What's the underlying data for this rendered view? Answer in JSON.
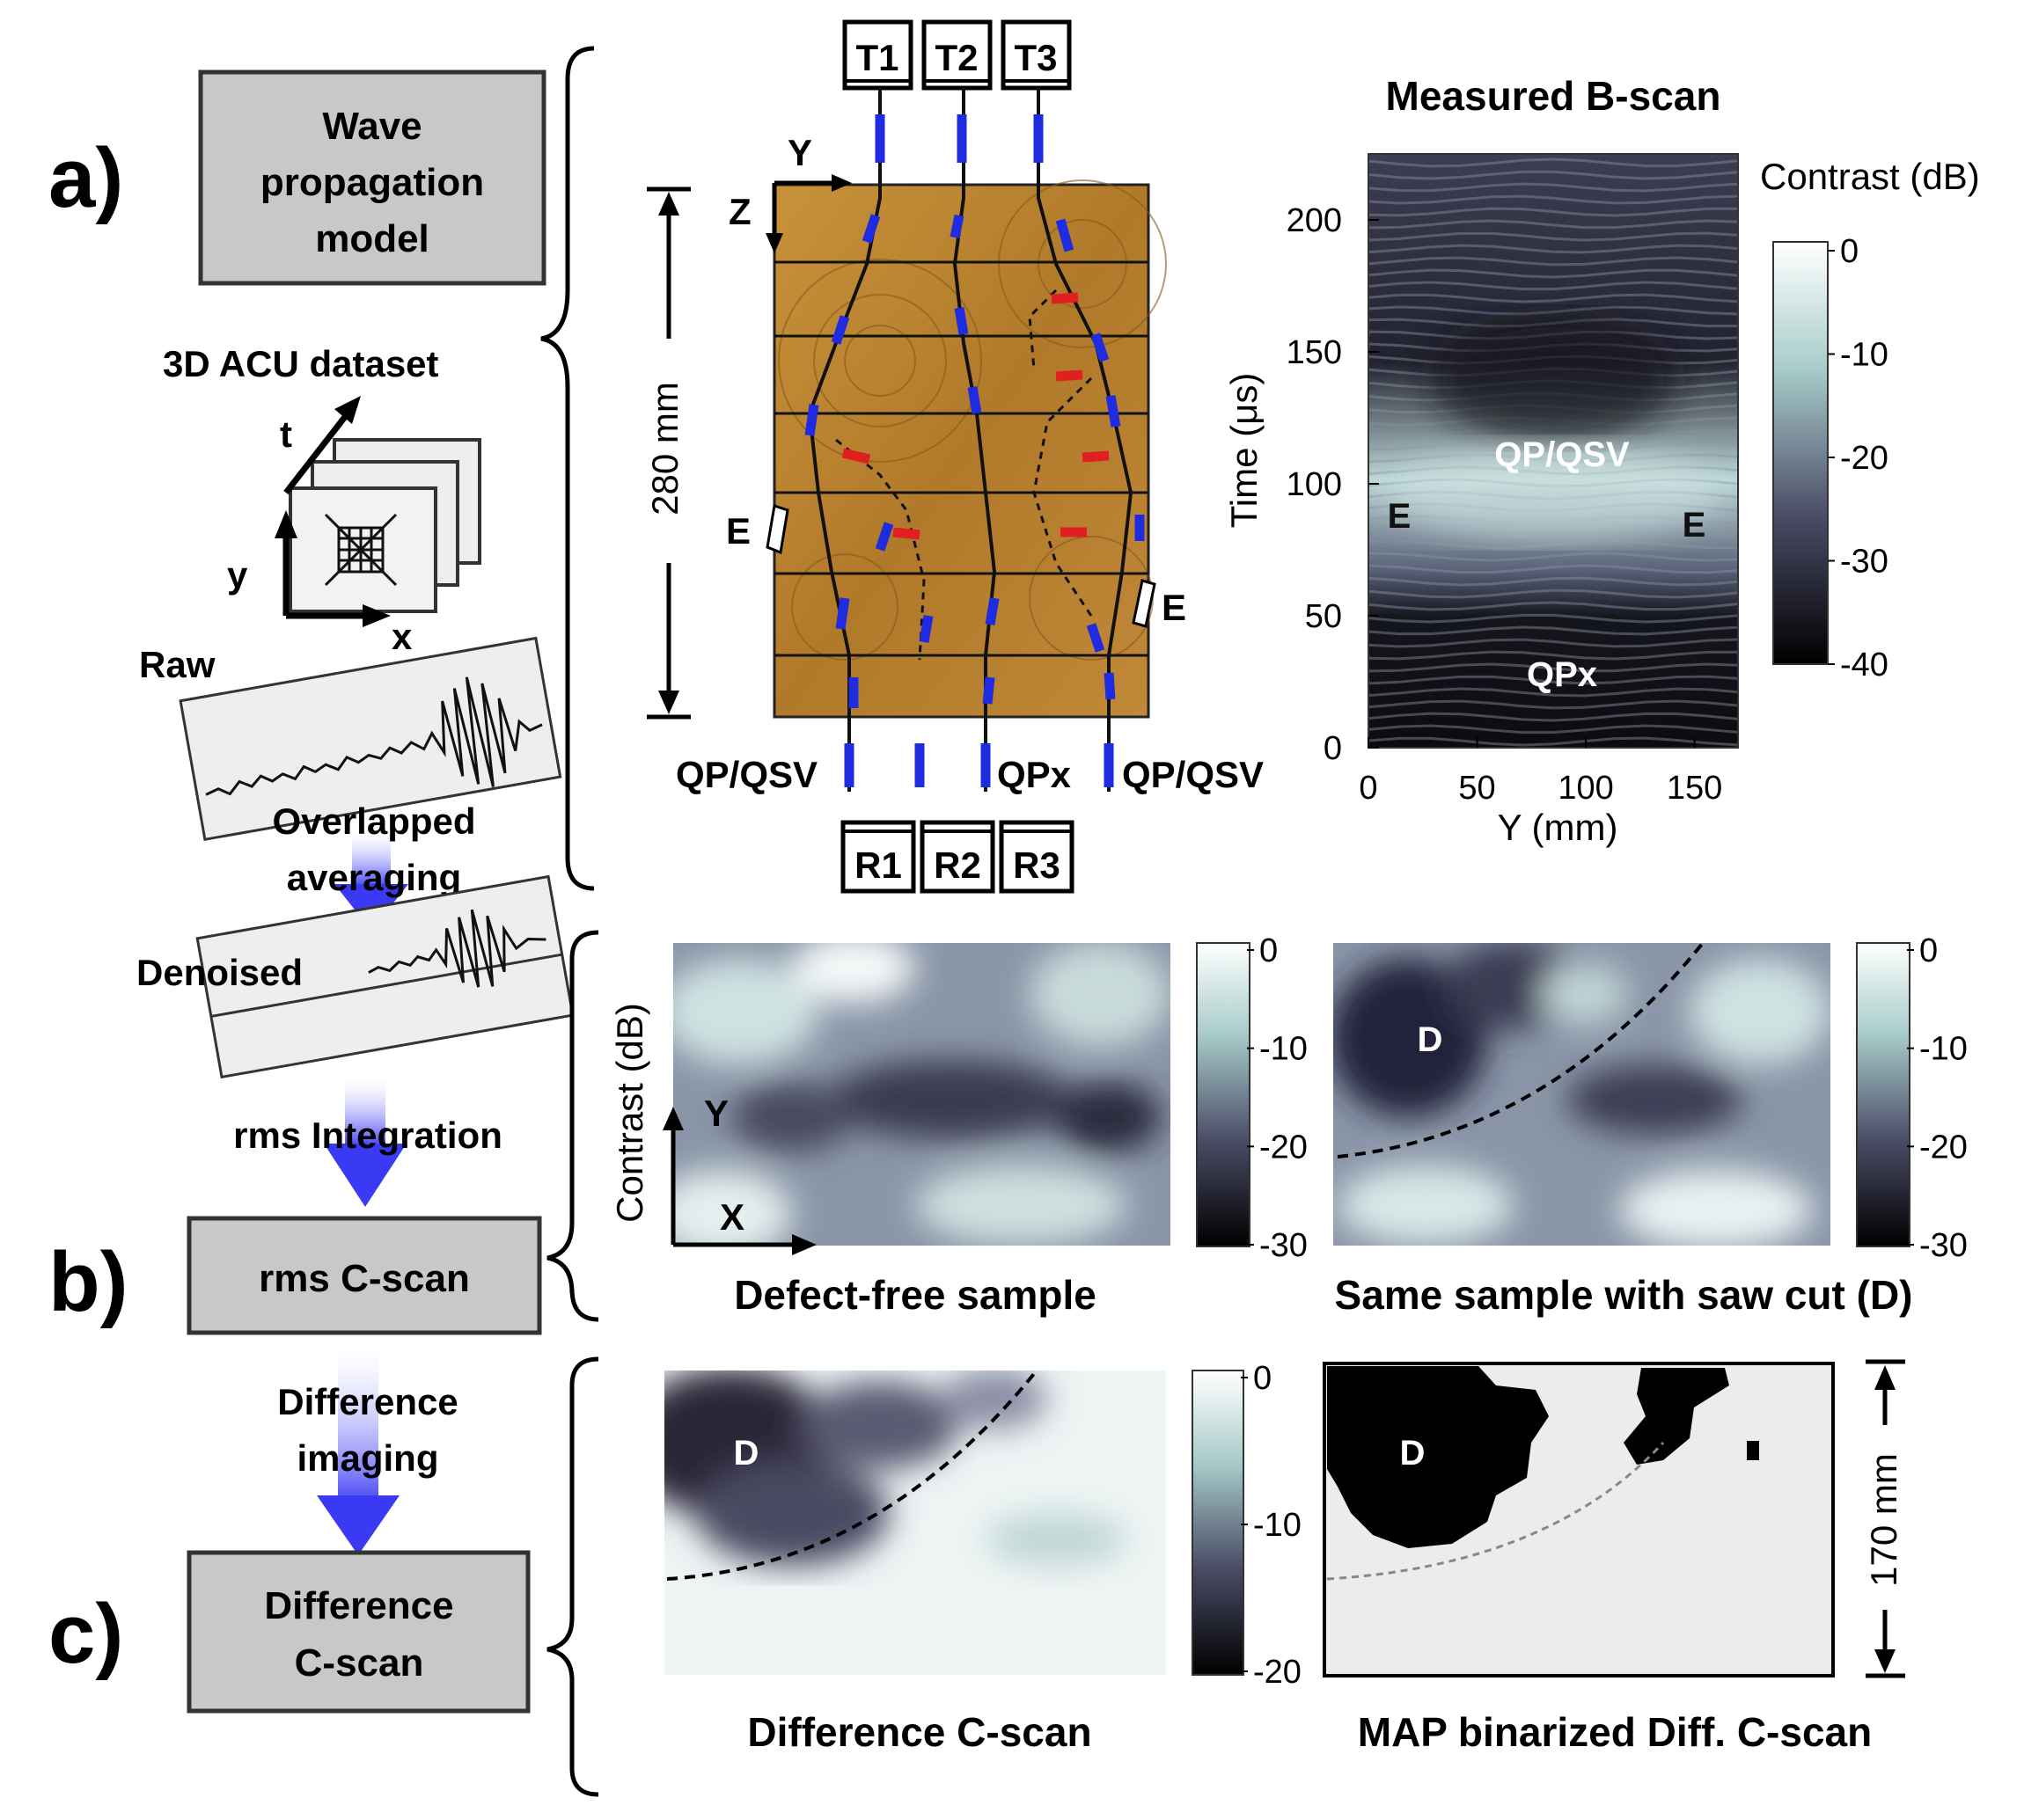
{
  "sections": {
    "a": "a)",
    "b": "b)",
    "c": "c)"
  },
  "workflow": {
    "model_box": [
      "Wave",
      "propagation",
      "model"
    ],
    "dataset_label": "3D ACU dataset",
    "axes": {
      "t": "t",
      "y": "y",
      "x": "x"
    },
    "raw_label": "Raw",
    "overlap_label": [
      "Overlapped",
      "averaging"
    ],
    "denoised_label": "Denoised",
    "rms_label": "rms Integration",
    "cscan_box": "rms C-scan",
    "diff_label": [
      "Difference",
      "imaging"
    ],
    "diff_box": [
      "Difference",
      "C-scan"
    ]
  },
  "geometry_panel": {
    "transmitters": [
      "T1",
      "T2",
      "T3"
    ],
    "receivers": [
      "R1",
      "R2",
      "R3"
    ],
    "axis_y": "Y",
    "axis_z": "Z",
    "dimension": "280 mm",
    "edge_left": "E",
    "edge_right": "E",
    "bottom_labels": [
      "QP/QSV",
      "QPx",
      "QP/QSV"
    ]
  },
  "bscan": {
    "title": "Measured B-scan",
    "colorbar_title": "Contrast (dB)",
    "annotations": {
      "center": "QP/QSV",
      "left_edge": "E",
      "right_edge": "E",
      "lower": "QPx"
    }
  },
  "cscans": {
    "left_title": "Defect-free sample",
    "right_title": "Same sample with saw cut (D)",
    "ylabel": "Contrast (dB)",
    "axis_y": "Y",
    "axis_x": "X",
    "defect_label": "D",
    "colorbar_ticks": [
      "0",
      "-10",
      "-20",
      "-30"
    ]
  },
  "difference": {
    "left_title": "Difference C-scan",
    "right_title": "MAP binarized Diff. C-scan",
    "defect_label": "D",
    "colorbar_ticks": [
      "0",
      "-10",
      "-20"
    ],
    "dimension": "170 mm"
  },
  "chart_data": {
    "type": "heatmap",
    "title": "Measured B-scan",
    "xlabel": "Y (mm)",
    "ylabel": "Time (μs)",
    "colorbar_label": "Contrast (dB)",
    "x_ticks": [
      0,
      50,
      100,
      150
    ],
    "y_ticks": [
      0,
      50,
      100,
      150,
      200
    ],
    "colorbar_ticks": [
      0,
      -10,
      -20,
      -30,
      -40
    ],
    "xlim": [
      0,
      170
    ],
    "ylim": [
      0,
      225
    ],
    "clim": [
      -40,
      0
    ]
  },
  "colors": {
    "box_fill": "#c8c8c8",
    "arrow": "#4a4af5",
    "wood": "#b8842e",
    "ray_blue": "#1f2be0",
    "ray_red": "#e02020",
    "map_dark": "#2a2838",
    "map_light": "#e8eeee"
  }
}
